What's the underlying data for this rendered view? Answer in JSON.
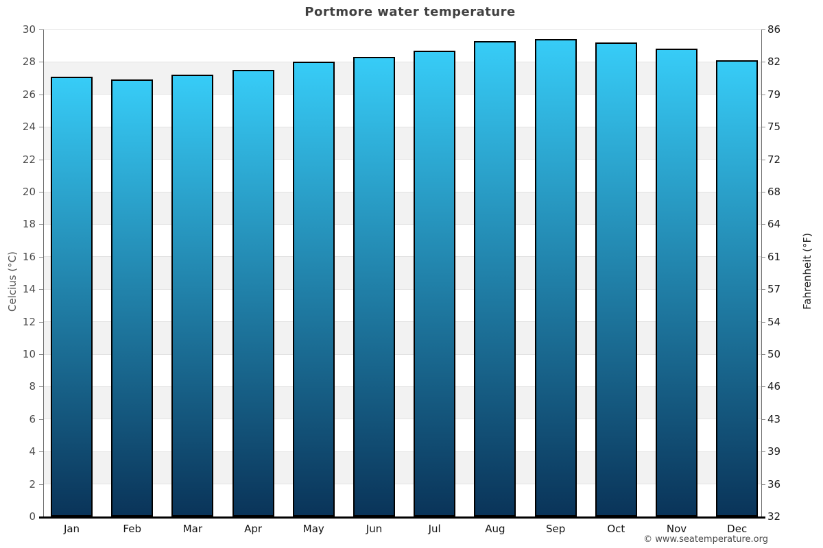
{
  "page": {
    "footer": "© www.seatemperature.org"
  },
  "colors": {
    "bar_gradient_top": "#37ccf7",
    "bar_gradient_bottom": "#0a3459",
    "bar_border": "#000000",
    "band_gray": "#f2f2f2",
    "band_white": "#ffffff",
    "gridline": "#e2e2e2",
    "axis_bottom": "#000000",
    "axis_side": "#6e6e6e",
    "title_text": "#404040",
    "left_tick_text": "#4d4d4d",
    "right_tick_text": "#1a1a1a"
  },
  "chart_data": {
    "type": "bar",
    "title": "Portmore water temperature",
    "categories": [
      "Jan",
      "Feb",
      "Mar",
      "Apr",
      "May",
      "Jun",
      "Jul",
      "Aug",
      "Sep",
      "Oct",
      "Nov",
      "Dec"
    ],
    "values": [
      27.1,
      26.9,
      27.2,
      27.5,
      28.0,
      28.3,
      28.7,
      29.3,
      29.4,
      29.2,
      28.8,
      28.1
    ],
    "xlabel": "",
    "ylabel_left": "Celcius (°C)",
    "ylabel_right": "Fahrenheit (°F)",
    "ylim": [
      0,
      30
    ],
    "yticks_celsius": [
      0,
      2,
      4,
      6,
      8,
      10,
      12,
      14,
      16,
      18,
      20,
      22,
      24,
      26,
      28,
      30
    ],
    "yticks_fahrenheit": [
      32,
      36,
      39,
      43,
      46,
      50,
      54,
      57,
      61,
      64,
      68,
      72,
      75,
      79,
      82,
      86
    ],
    "grid": true,
    "legend": "none",
    "footer": "© www.seatemperature.org"
  }
}
